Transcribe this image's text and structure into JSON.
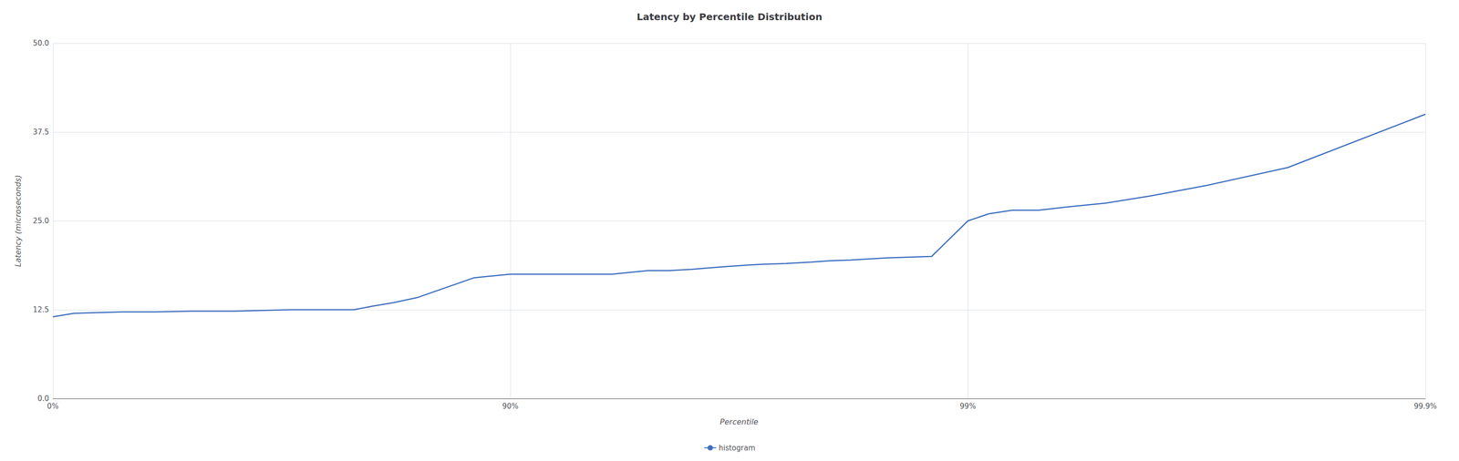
{
  "chart_data": {
    "type": "line",
    "title": "Latency by Percentile Distribution",
    "xlabel": "Percentile",
    "ylabel": "Latency (microseconds)",
    "x": [
      0,
      10,
      20,
      30,
      40,
      50,
      55,
      60,
      65,
      70,
      75,
      78,
      80,
      82,
      84,
      86,
      88,
      90,
      91,
      92,
      93,
      94,
      95,
      95.5,
      96,
      96.5,
      97,
      97.2,
      97.5,
      97.8,
      98,
      98.2,
      98.5,
      98.8,
      99,
      99.1,
      99.2,
      99.3,
      99.4,
      99.5,
      99.6,
      99.7,
      99.8,
      99.9
    ],
    "series": [
      {
        "name": "histogram",
        "color": "#3d6ebf",
        "values": [
          11.5,
          12.0,
          12.1,
          12.2,
          12.2,
          12.3,
          12.3,
          12.3,
          12.4,
          12.5,
          12.5,
          12.5,
          13.0,
          13.5,
          14.2,
          15.5,
          17.0,
          17.5,
          17.5,
          17.5,
          17.5,
          17.5,
          18.0,
          18.0,
          18.2,
          18.5,
          18.8,
          18.9,
          19.0,
          19.2,
          19.4,
          19.5,
          19.8,
          20.0,
          25.0,
          26.0,
          26.5,
          26.5,
          27.0,
          27.5,
          28.5,
          30.0,
          32.5,
          40.0
        ]
      }
    ],
    "xlim": [
      0,
      99.9
    ],
    "xticks": [
      {
        "value": 0,
        "label": "0%"
      },
      {
        "value": 90,
        "label": "90%"
      },
      {
        "value": 99,
        "label": "99%"
      },
      {
        "value": 99.9,
        "label": "99.9%"
      }
    ],
    "ylim": [
      0.0,
      50.0
    ],
    "yticks": [
      {
        "value": 0,
        "label": "0.0"
      },
      12.5,
      {
        "value": 25,
        "label": "25.0"
      },
      37.5,
      {
        "value": 50,
        "label": "50.0"
      }
    ],
    "grid": true,
    "legend": "bottom"
  }
}
